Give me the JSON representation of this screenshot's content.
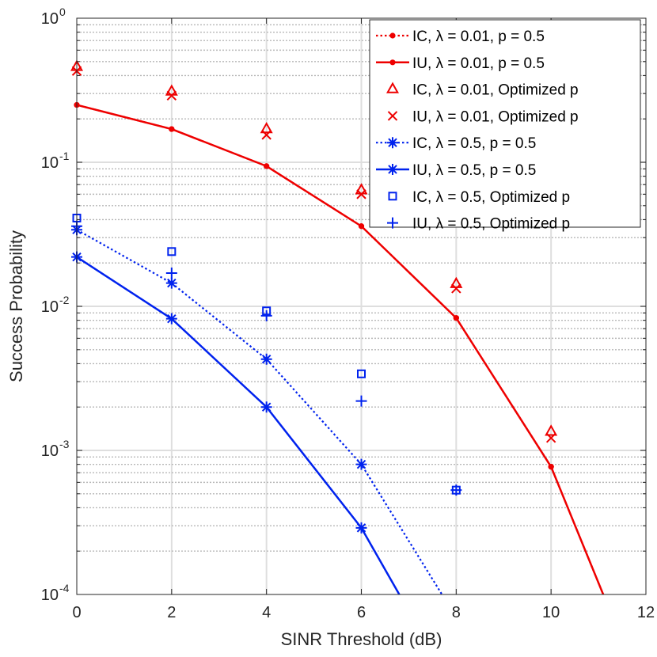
{
  "chart_data": {
    "type": "line",
    "title": "",
    "xlabel": "SINR Threshold (dB)",
    "ylabel": "Success Probability",
    "xlim": [
      0,
      12
    ],
    "ylim": [
      0.0001,
      1
    ],
    "yscale": "log",
    "grid": true,
    "xticks": [
      "0",
      "2",
      "4",
      "6",
      "8",
      "10",
      "12"
    ],
    "yticks": [
      {
        "base": "10",
        "exp": "-4"
      },
      {
        "base": "10",
        "exp": "-3"
      },
      {
        "base": "10",
        "exp": "-2"
      },
      {
        "base": "10",
        "exp": "-1"
      },
      {
        "base": "10",
        "exp": "0"
      }
    ],
    "legend_position": "top-right",
    "colors": {
      "red": "#ee0000",
      "blue": "#0022ee"
    },
    "series": [
      {
        "name": "IC, λ = 0.01, p = 0.5",
        "color": "red",
        "style": "dotted",
        "marker": "dot",
        "x": [
          0,
          2,
          4,
          6,
          8,
          10,
          11.1
        ],
        "y": [
          0.25,
          0.17,
          0.094,
          0.036,
          0.0083,
          0.00077,
          0.0001
        ],
        "marked": [
          0,
          1,
          2,
          3,
          4,
          5
        ]
      },
      {
        "name": "IU, λ = 0.01, p = 0.5",
        "color": "red",
        "style": "solid",
        "marker": "dot",
        "x": [
          0,
          2,
          4,
          6,
          8,
          10,
          11.1
        ],
        "y": [
          0.25,
          0.17,
          0.094,
          0.036,
          0.0083,
          0.00077,
          0.0001
        ],
        "marked": [
          0,
          1,
          2,
          3,
          4,
          5
        ]
      },
      {
        "name": "IC, λ = 0.01, Optimized p",
        "color": "red",
        "style": "none",
        "marker": "triangle",
        "x": [
          0,
          2,
          4,
          6,
          8,
          10
        ],
        "y": [
          0.46,
          0.31,
          0.17,
          0.064,
          0.0143,
          0.00135
        ]
      },
      {
        "name": "IU, λ = 0.01, Optimized p",
        "color": "red",
        "style": "none",
        "marker": "x",
        "x": [
          0,
          2,
          4,
          6,
          8,
          10
        ],
        "y": [
          0.43,
          0.29,
          0.155,
          0.06,
          0.0133,
          0.00122
        ]
      },
      {
        "name": "IC, λ = 0.5, p = 0.5",
        "color": "blue",
        "style": "dotted",
        "marker": "asterisk",
        "x": [
          0,
          2,
          4,
          6,
          7.7
        ],
        "y": [
          0.034,
          0.0145,
          0.0043,
          0.0008,
          0.0001
        ],
        "marked": [
          0,
          1,
          2,
          3
        ]
      },
      {
        "name": "IU, λ = 0.5, p = 0.5",
        "color": "blue",
        "style": "solid",
        "marker": "asterisk",
        "x": [
          0,
          2,
          4,
          6,
          6.8
        ],
        "y": [
          0.022,
          0.0082,
          0.002,
          0.00029,
          0.0001
        ],
        "marked": [
          0,
          1,
          2,
          3
        ]
      },
      {
        "name": "IC, λ = 0.5, Optimized p",
        "color": "blue",
        "style": "none",
        "marker": "square",
        "x": [
          0,
          2,
          4,
          6,
          8
        ],
        "y": [
          0.041,
          0.024,
          0.0093,
          0.0034,
          0.00053
        ]
      },
      {
        "name": "IU, λ = 0.5, Optimized p",
        "color": "blue",
        "style": "none",
        "marker": "plus",
        "x": [
          0,
          2,
          4,
          6,
          8
        ],
        "y": [
          0.036,
          0.017,
          0.0086,
          0.0022,
          0.00053
        ]
      }
    ]
  }
}
